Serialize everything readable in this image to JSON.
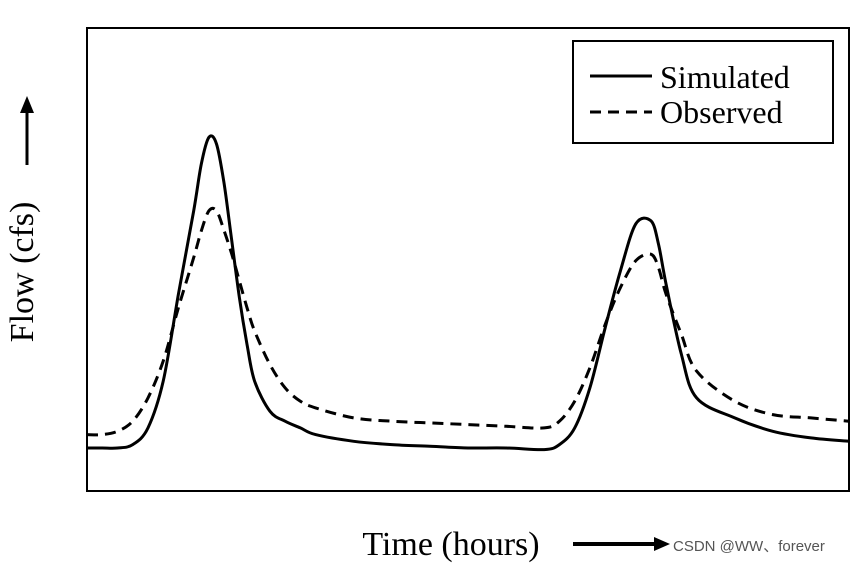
{
  "chart_data": {
    "type": "line",
    "title": "",
    "xlabel": "Time (hours)",
    "ylabel": "Flow (cfs)",
    "xlim": [
      0,
      100
    ],
    "ylim": [
      0,
      100
    ],
    "grid": false,
    "legend_position": "top-right",
    "series": [
      {
        "name": "Simulated",
        "style": "solid",
        "x": [
          0,
          2,
          4,
          6,
          8,
          10,
          12,
          14,
          15,
          16,
          17,
          18,
          19,
          20,
          21,
          22,
          24,
          26,
          28,
          30,
          35,
          40,
          45,
          50,
          55,
          60,
          62,
          64,
          66,
          68,
          70,
          72,
          74,
          75,
          76,
          78,
          80,
          85,
          90,
          95,
          100
        ],
        "values": [
          6,
          6,
          6,
          7,
          12,
          26,
          52,
          77,
          91,
          99,
          97,
          85,
          68,
          51,
          37,
          26,
          17,
          14,
          12,
          10,
          8,
          7,
          6.5,
          6,
          6,
          5.5,
          7,
          12,
          24,
          42,
          59,
          73,
          74,
          67,
          55,
          34,
          21,
          15,
          11,
          9,
          8
        ]
      },
      {
        "name": "Observed",
        "style": "dashed",
        "x": [
          0,
          2,
          4,
          6,
          8,
          10,
          12,
          14,
          15,
          16,
          17,
          18,
          19,
          20,
          21,
          22,
          24,
          26,
          28,
          30,
          35,
          40,
          45,
          50,
          55,
          60,
          62,
          64,
          66,
          68,
          70,
          72,
          74,
          75,
          76,
          78,
          80,
          85,
          90,
          95,
          100
        ],
        "values": [
          10,
          10,
          11,
          14,
          21,
          32,
          48,
          63,
          71,
          77,
          77,
          71,
          64,
          56,
          48,
          41,
          31,
          24,
          20,
          18,
          15,
          14,
          13.5,
          13,
          12.5,
          12,
          14,
          20,
          30,
          43,
          54,
          62,
          64,
          60,
          52,
          40,
          29,
          20,
          16,
          15,
          14
        ]
      }
    ],
    "legend": [
      "Simulated",
      "Observed"
    ]
  },
  "watermark": "CSDN @WW、forever",
  "colors": {
    "line": "#000000",
    "background": "#ffffff",
    "watermark": "#555555"
  },
  "icons": {
    "y_arrow": "arrow-up-icon",
    "x_arrow": "arrow-right-icon"
  }
}
